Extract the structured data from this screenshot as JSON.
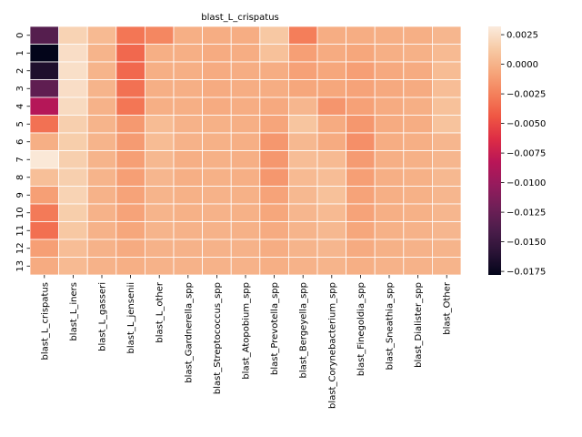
{
  "chart_data": {
    "type": "heatmap",
    "title": "blast_L_crispatus",
    "row_labels": [
      "0",
      "1",
      "2",
      "3",
      "4",
      "5",
      "6",
      "7",
      "8",
      "9",
      "10",
      "11",
      "12",
      "13"
    ],
    "col_labels": [
      "blast_L_crispatus",
      "blast_L_iners",
      "blast_L_gasseri",
      "blast_L_jensenii",
      "blast_L_other",
      "blast_Gardnerella_spp",
      "blast_Streptococcus_spp",
      "blast_Atopobium_spp",
      "blast_Prevotella_spp",
      "blast_Bergeyella_spp",
      "blast_Corynebacterium_spp",
      "blast_Finegoldia_spp",
      "blast_Sneathia_spp",
      "blast_Dialister_spp",
      "blast_Other"
    ],
    "values": [
      [
        -0.0135,
        0.0018,
        0.0004,
        -0.003,
        -0.0022,
        -0.0002,
        -0.0003,
        -0.0003,
        0.0012,
        -0.0026,
        -0.0003,
        -0.0003,
        -0.0002,
        -0.0002,
        0.0002
      ],
      [
        -0.0178,
        0.0024,
        0.0001,
        -0.0036,
        -0.0002,
        -0.0002,
        -0.0004,
        -0.0003,
        0.0008,
        -0.001,
        -0.0004,
        -0.0006,
        -0.0002,
        -0.0001,
        0.0004
      ],
      [
        -0.0165,
        0.0025,
        0.0001,
        -0.0036,
        -0.0002,
        -0.0002,
        -0.0004,
        -0.0003,
        -0.0003,
        -0.0009,
        -0.0006,
        -0.001,
        -0.0005,
        -0.0004,
        0.0005
      ],
      [
        -0.013,
        0.0024,
        0.0001,
        -0.0032,
        -0.0002,
        -0.0002,
        -0.0004,
        -0.0003,
        -0.0003,
        -0.0006,
        -0.0006,
        -0.0008,
        -0.0005,
        -0.0004,
        0.0006
      ],
      [
        -0.0085,
        0.0022,
        0.0,
        -0.003,
        -0.0002,
        -0.0002,
        -0.0004,
        -0.0003,
        -0.0005,
        0.0002,
        -0.0015,
        -0.0009,
        -0.0004,
        -0.0002,
        0.0008
      ],
      [
        -0.0032,
        0.0016,
        0.0001,
        -0.0013,
        0.0005,
        0.0,
        -0.0001,
        -0.0002,
        -0.0007,
        0.001,
        -0.0004,
        -0.0014,
        -0.0004,
        -0.0003,
        0.0009
      ],
      [
        -0.0002,
        0.0015,
        0.0001,
        -0.0012,
        0.0005,
        0.0,
        -0.0001,
        -0.0002,
        -0.0014,
        0.0003,
        -0.0004,
        -0.0018,
        -0.0003,
        -0.0002,
        0.0002
      ],
      [
        0.003,
        0.0016,
        0.0001,
        -0.001,
        0.0003,
        -0.0002,
        -0.0001,
        -0.0002,
        -0.0014,
        0.0006,
        0.0004,
        -0.0012,
        -0.0002,
        -0.0001,
        0.0002
      ],
      [
        0.0007,
        0.0016,
        0.0001,
        -0.001,
        0.0002,
        -0.0002,
        -0.0001,
        -0.0002,
        -0.0014,
        0.0004,
        0.0006,
        -0.001,
        -0.0002,
        -0.0001,
        0.0003
      ],
      [
        -0.001,
        0.0018,
        0.0,
        -0.0008,
        0.0001,
        -0.0001,
        0.0,
        -0.0001,
        -0.0008,
        0.0003,
        0.0008,
        -0.0008,
        -0.0002,
        -0.0001,
        0.0002
      ],
      [
        -0.0028,
        0.0015,
        0.0,
        -0.0008,
        0.0001,
        -0.0001,
        0.0,
        -0.0001,
        -0.0006,
        0.0002,
        0.0004,
        -0.0008,
        -0.0002,
        -0.0001,
        0.0002
      ],
      [
        -0.0033,
        0.0012,
        0.0,
        -0.0006,
        0.0001,
        0.0,
        0.0,
        -0.0001,
        -0.0004,
        0.0001,
        0.0003,
        -0.0006,
        -0.0001,
        0.0,
        0.0002
      ],
      [
        -0.001,
        0.0006,
        0.0,
        -0.0004,
        0.0,
        0.0,
        0.0,
        0.0,
        -0.0003,
        0.0001,
        0.0002,
        -0.0004,
        -0.0001,
        0.0,
        0.0001
      ],
      [
        -0.0004,
        0.0004,
        0.0,
        -0.0002,
        0.0,
        0.0,
        0.0,
        0.0,
        -0.0002,
        0.0,
        0.0001,
        -0.0002,
        0.0,
        0.0,
        0.0001
      ]
    ],
    "colorbar": {
      "vmin": -0.0178,
      "vmax": 0.0032,
      "ticks": [
        0.0025,
        0.0,
        -0.0025,
        -0.005,
        -0.0075,
        -0.01,
        -0.0125,
        -0.015,
        -0.0175
      ],
      "tick_labels": [
        "0.0025",
        "0.0000",
        "−0.0025",
        "−0.0050",
        "−0.0075",
        "−0.0100",
        "−0.0125",
        "−0.0150",
        "−0.0175"
      ],
      "colormap": "rocket",
      "colormap_stops": [
        "#03051a",
        "#2a1336",
        "#4c1d4b",
        "#701f57",
        "#961b5d",
        "#b91657",
        "#dd2c45",
        "#ef5643",
        "#f4805b",
        "#f6a77c",
        "#f7caa5",
        "#faebdd"
      ]
    },
    "grid": true,
    "cell_border_color": "#ffffff"
  }
}
